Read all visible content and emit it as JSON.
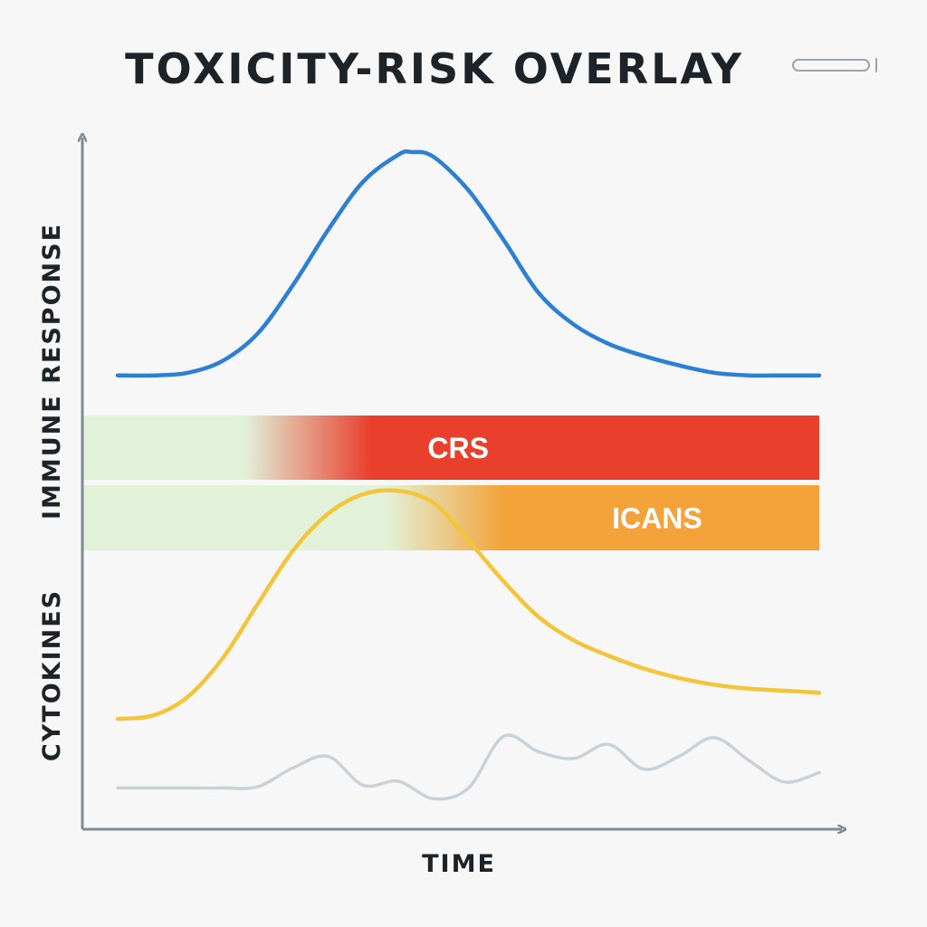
{
  "chart_data": {
    "type": "line",
    "title": "TOXICITY-RISK OVERLAY",
    "xlabel": "TIME",
    "ylabels": [
      "IMMUNE RESPONSE",
      "CYTOKINES"
    ],
    "xlim": [
      0,
      100
    ],
    "ylim": [
      0,
      100
    ],
    "grid": false,
    "legend": "none",
    "series": [
      {
        "color": "#2d7fd6",
        "x": [
          0,
          5,
          10,
          15,
          20,
          25,
          30,
          35,
          40,
          42,
          45,
          50,
          55,
          60,
          65,
          70,
          75,
          80,
          85,
          90,
          95,
          100
        ],
        "y": [
          66.3,
          66.3,
          66.7,
          68.5,
          72.6,
          79.8,
          88.0,
          95.2,
          99.2,
          99.6,
          98.9,
          93.9,
          86.5,
          78.6,
          73.9,
          71.0,
          69.2,
          67.8,
          66.7,
          66.3,
          66.3,
          66.3
        ]
      },
      {
        "color": "#f2c53a",
        "x": [
          0,
          5,
          10,
          15,
          20,
          25,
          30,
          35,
          40,
          45,
          50,
          55,
          60,
          65,
          70,
          75,
          80,
          85,
          90,
          95,
          100
        ],
        "y": [
          15.1,
          15.6,
          18.4,
          24.2,
          32.3,
          40.2,
          45.7,
          48.6,
          49.1,
          47.3,
          41.7,
          35.6,
          30.3,
          26.8,
          24.5,
          22.6,
          21.2,
          20.2,
          19.6,
          19.3,
          19.0
        ]
      },
      {
        "color": "#c8d2d9",
        "x": [
          0,
          5,
          10,
          15,
          20,
          25,
          30,
          35,
          40,
          45,
          50,
          55,
          60,
          65,
          70,
          75,
          80,
          85,
          90,
          95,
          100
        ],
        "y": [
          4.8,
          4.8,
          4.8,
          4.8,
          5.0,
          7.8,
          9.5,
          5.2,
          5.8,
          3.2,
          4.8,
          12.5,
          10.2,
          9.2,
          11.3,
          7.6,
          9.5,
          12.3,
          8.9,
          5.7,
          7.1
        ]
      }
    ],
    "bands": [
      {
        "label": "CRS",
        "color": "#e9402e",
        "fade_from": 18,
        "fade_to": 36
      },
      {
        "label": "ICANS",
        "color": "#f3a33a",
        "fade_from": 38,
        "fade_to": 55
      }
    ],
    "colors": {
      "band_start": "#e2f2d9",
      "axis": "#7f8b97"
    }
  }
}
